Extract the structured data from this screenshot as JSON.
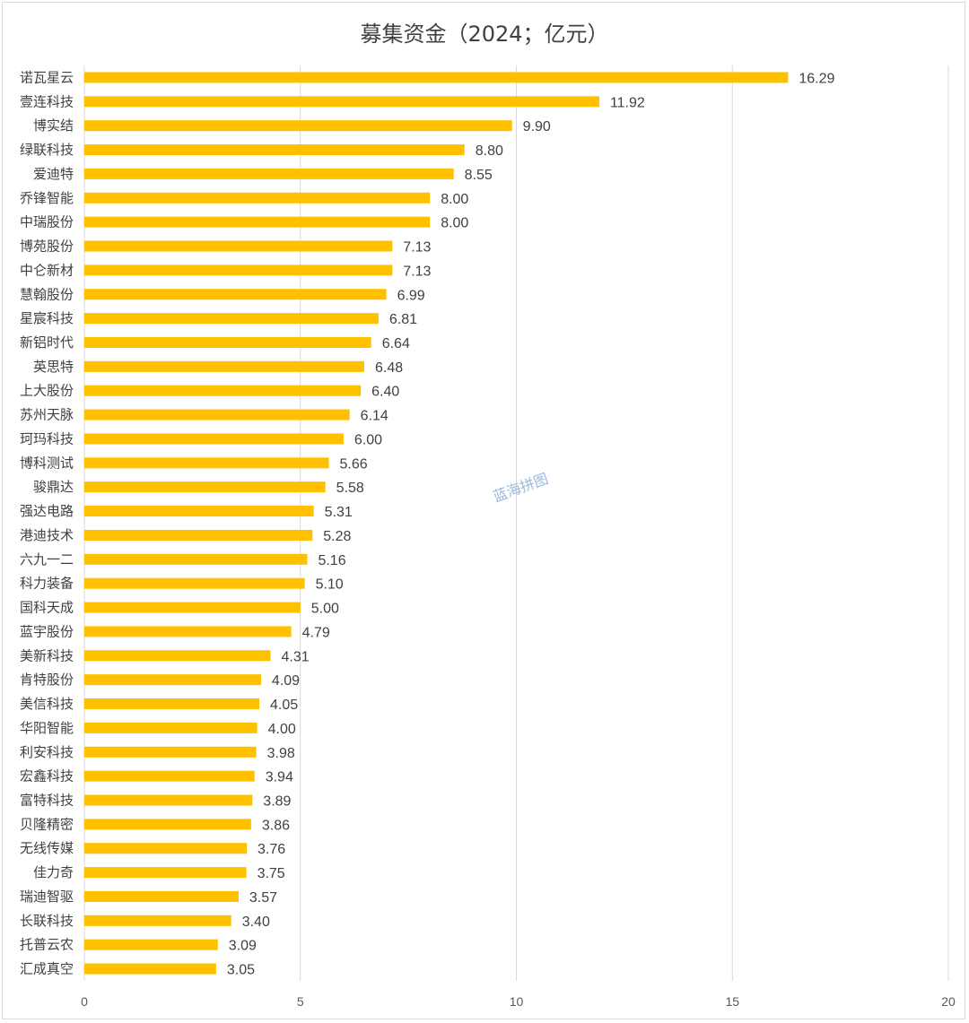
{
  "chart_data": {
    "type": "bar",
    "orientation": "horizontal",
    "title": "募集资金（2024；亿元）",
    "categories": [
      "诺瓦星云",
      "壹连科技",
      "博实结",
      "绿联科技",
      "爱迪特",
      "乔锋智能",
      "中瑞股份",
      "博苑股份",
      "中仑新材",
      "慧翰股份",
      "星宸科技",
      "新铝时代",
      "英思特",
      "上大股份",
      "苏州天脉",
      "珂玛科技",
      "博科测试",
      "骏鼎达",
      "强达电路",
      "港迪技术",
      "六九一二",
      "科力装备",
      "国科天成",
      "蓝宇股份",
      "美新科技",
      "肯特股份",
      "美信科技",
      "华阳智能",
      "利安科技",
      "宏鑫科技",
      "富特科技",
      "贝隆精密",
      "无线传媒",
      "佳力奇",
      "瑞迪智驱",
      "长联科技",
      "托普云农",
      "汇成真空"
    ],
    "values": [
      16.29,
      11.92,
      9.9,
      8.8,
      8.55,
      8.0,
      8.0,
      7.13,
      7.13,
      6.99,
      6.81,
      6.64,
      6.48,
      6.4,
      6.14,
      6.0,
      5.66,
      5.58,
      5.31,
      5.28,
      5.16,
      5.1,
      5.0,
      4.79,
      4.31,
      4.09,
      4.05,
      4.0,
      3.98,
      3.94,
      3.89,
      3.86,
      3.76,
      3.75,
      3.57,
      3.4,
      3.09,
      3.05
    ],
    "xlim": [
      0,
      20
    ],
    "xticks": [
      0,
      5,
      10,
      15,
      20
    ],
    "grid": true,
    "legend": "none",
    "bar_color": "#FFC000",
    "value_decimals": 2
  },
  "watermark": "蓝海拼图"
}
